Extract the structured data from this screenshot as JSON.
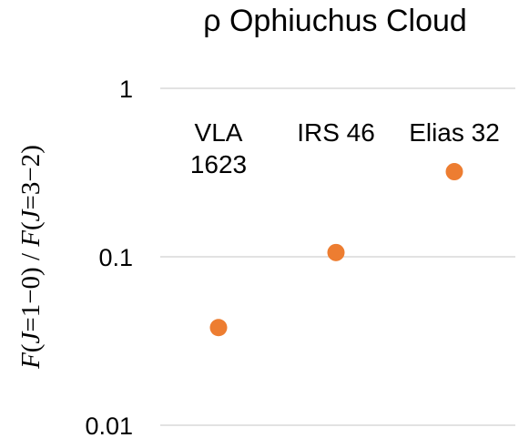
{
  "chart_data": {
    "type": "scatter",
    "title": "ρ Ophiuchus Cloud",
    "ylabel": {
      "pre1": "F",
      "mid1": "(",
      "j1": "J",
      "rest1": "=1−0) / ",
      "pre2": "F",
      "mid2": "(",
      "j2": "J",
      "rest2": "=3−2)"
    },
    "ylabel_text": "F(J=1−0) / F(J=3−2)",
    "yscale": "log",
    "ylim": [
      0.01,
      1
    ],
    "yticks": [
      "1",
      "0.1",
      "0.01"
    ],
    "grid": true,
    "marker_color": "#ED7D31",
    "grid_color": "#D9D9D9",
    "categories": [
      {
        "lines": [
          "VLA",
          "1623"
        ]
      },
      {
        "lines": [
          "IRS 46"
        ]
      },
      {
        "lines": [
          "Elias 32"
        ]
      }
    ],
    "values": [
      0.038,
      0.106,
      0.32
    ]
  }
}
